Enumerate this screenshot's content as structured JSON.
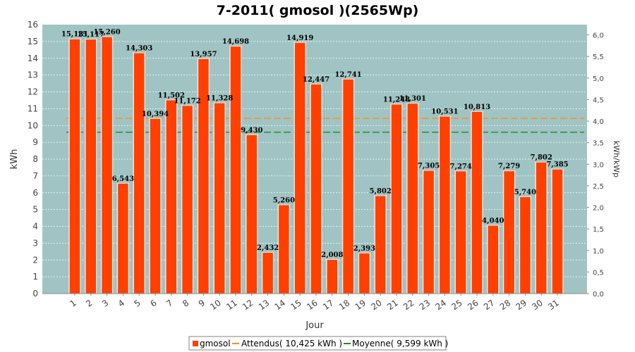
{
  "chart_data": {
    "type": "bar",
    "title": "7-2011( gmosol )(2565Wp)",
    "xlabel": "Jour",
    "ylabel": "kWh",
    "ylabel_right": "kWh/kWp",
    "ylim": [
      0,
      16
    ],
    "ylim_right": [
      0.0,
      6.238
    ],
    "yticks": [
      "0",
      "1",
      "2",
      "3",
      "4",
      "5",
      "6",
      "7",
      "8",
      "9",
      "10",
      "11",
      "12",
      "13",
      "14",
      "15",
      "16"
    ],
    "yticks_right": [
      "0,0",
      "0,5",
      "1,0",
      "1,5",
      "2,0",
      "2,5",
      "3,0",
      "3,5",
      "4,0",
      "4,5",
      "5,0",
      "5,5",
      "6,0"
    ],
    "categories": [
      "1",
      "2",
      "3",
      "4",
      "5",
      "6",
      "7",
      "8",
      "9",
      "10",
      "11",
      "12",
      "13",
      "14",
      "15",
      "16",
      "17",
      "18",
      "19",
      "20",
      "21",
      "22",
      "23",
      "24",
      "25",
      "26",
      "27",
      "28",
      "29",
      "30",
      "31"
    ],
    "series": [
      {
        "name": "gmosol",
        "values": [
          15.131,
          15.117,
          15.26,
          6.543,
          14.303,
          10.394,
          11.502,
          11.172,
          13.957,
          11.328,
          14.698,
          9.43,
          2.432,
          5.26,
          14.919,
          12.447,
          2.008,
          12.741,
          2.393,
          5.802,
          11.248,
          11.301,
          7.305,
          10.531,
          7.274,
          10.813,
          4.04,
          7.279,
          5.74,
          7.802,
          7.385
        ],
        "labels": [
          "15,131",
          "15,117",
          "15,260",
          "6,543",
          "14,303",
          "10,394",
          "11,502",
          "11,172",
          "13,957",
          "11,328",
          "14,698",
          "9,430",
          "2,432",
          "5,260",
          "14,919",
          "12,447",
          "2,008",
          "12,741",
          "2,393",
          "5,802",
          "11,248",
          "11,301",
          "7,305",
          "10,531",
          "7,274",
          "10,813",
          "4,040",
          "7,279",
          "5,740",
          "7,802",
          "7,385"
        ],
        "color": "#ff4000"
      }
    ],
    "reference_lines": [
      {
        "name": "Attendus",
        "value": 10.425,
        "color": "#ff8c1a",
        "dashed": true
      },
      {
        "name": "Moyenne",
        "value": 9.599,
        "color": "#1a8c1a",
        "dashed": true
      }
    ],
    "legend": {
      "position": "bottom",
      "items": [
        "gmosol",
        "Attendus( 10,425 kWh )",
        "Moyenne( 9,599 kWh )"
      ]
    },
    "plot_background": "#9fc4c3",
    "grid": true
  }
}
